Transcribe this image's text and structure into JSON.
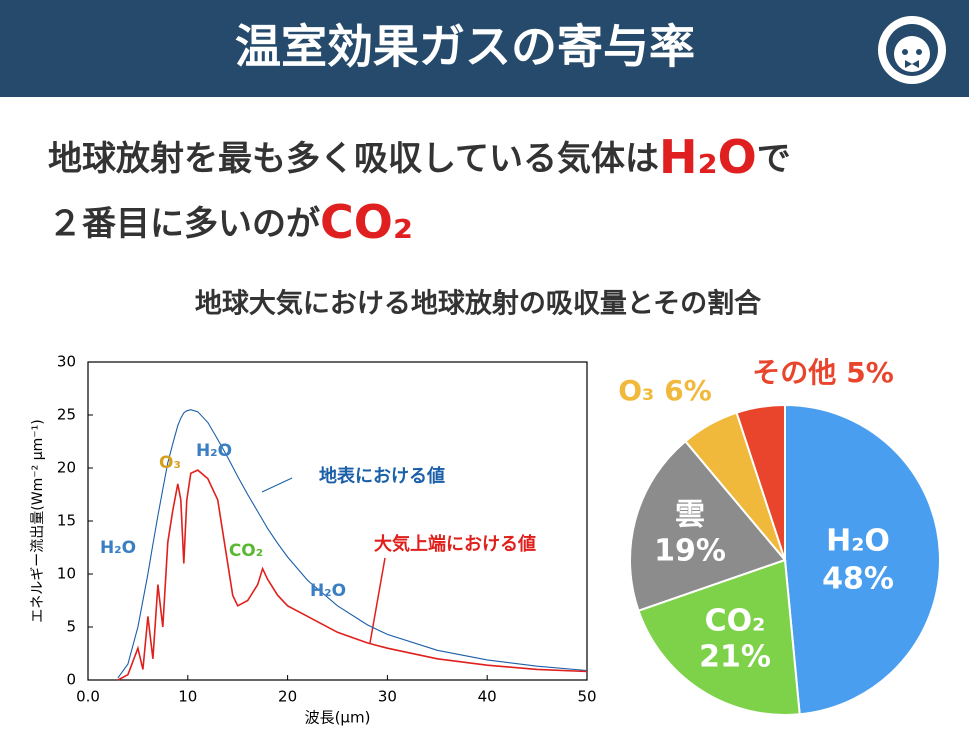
{
  "header": {
    "title": "温室効果ガスの寄与率"
  },
  "headline": {
    "line1": [
      "地球放射を最も多く吸収している気体は",
      "H₂O",
      "で"
    ],
    "line2": [
      "２番目に多いのが",
      "CO₂"
    ]
  },
  "subtitle": "地球大気における地球放射の吸収量とその割合",
  "chart_data": [
    {
      "type": "line",
      "xlabel": "波長(μm)",
      "ylabel": "エネルギー流出量(Wm⁻² μm⁻¹)",
      "x": [
        3,
        4,
        5,
        5.5,
        6,
        6.5,
        7,
        7.5,
        8,
        8.5,
        9,
        9.3,
        9.6,
        9.9,
        10.3,
        11,
        12,
        13,
        14,
        14.5,
        15,
        16,
        17,
        17.5,
        18,
        19,
        20,
        22,
        25,
        28,
        30,
        35,
        40,
        45,
        50
      ],
      "series": [
        {
          "name": "地表における値",
          "color": "#1a5fa8",
          "values": [
            0.2,
            1.5,
            5,
            7.5,
            10,
            12.8,
            15.5,
            18,
            20.5,
            22.3,
            24,
            24.7,
            25.2,
            25.4,
            25.5,
            25.3,
            24.3,
            22.7,
            21,
            20.1,
            19.2,
            17.5,
            15.9,
            15.1,
            14.3,
            12.9,
            11.6,
            9.4,
            7,
            5.2,
            4.3,
            2.8,
            1.9,
            1.3,
            0.9
          ]
        },
        {
          "name": "大気上端における値",
          "color": "#e0201c",
          "values": [
            0,
            0.5,
            3,
            1,
            6,
            2,
            9,
            5,
            13,
            16,
            18.5,
            17,
            11,
            17,
            19.5,
            19.8,
            19,
            17,
            11,
            8,
            7,
            7.5,
            9,
            10.5,
            9.5,
            8,
            7,
            6,
            4.5,
            3.5,
            3,
            2,
            1.4,
            1,
            0.8
          ]
        }
      ],
      "annotations": [
        {
          "text": "H₂O",
          "color": "#3a7fc4"
        },
        {
          "text": "O₃",
          "color": "#d4a020"
        },
        {
          "text": "H₂O",
          "color": "#3a7fc4"
        },
        {
          "text": "CO₂",
          "color": "#5ab832"
        },
        {
          "text": "H₂O",
          "color": "#3a7fc4"
        }
      ],
      "xlim": [
        0,
        50
      ],
      "ylim": [
        0,
        30
      ],
      "xticks": [
        {
          "value": 0,
          "label": "0.0"
        },
        10,
        20,
        30,
        40,
        50
      ],
      "yticks": [
        0,
        5,
        10,
        15,
        20,
        25,
        30
      ]
    },
    {
      "type": "pie",
      "categories": [
        "H₂O",
        "CO₂",
        "雲",
        "O₃",
        "その他"
      ],
      "values": [
        48,
        21,
        19,
        6,
        5
      ],
      "value_labels": [
        "48%",
        "21%",
        "19%",
        "6%",
        "5%"
      ],
      "colors": [
        "#4a9ef0",
        "#7ed24a",
        "#8c8c8c",
        "#f0b93c",
        "#e8452c"
      ]
    }
  ]
}
